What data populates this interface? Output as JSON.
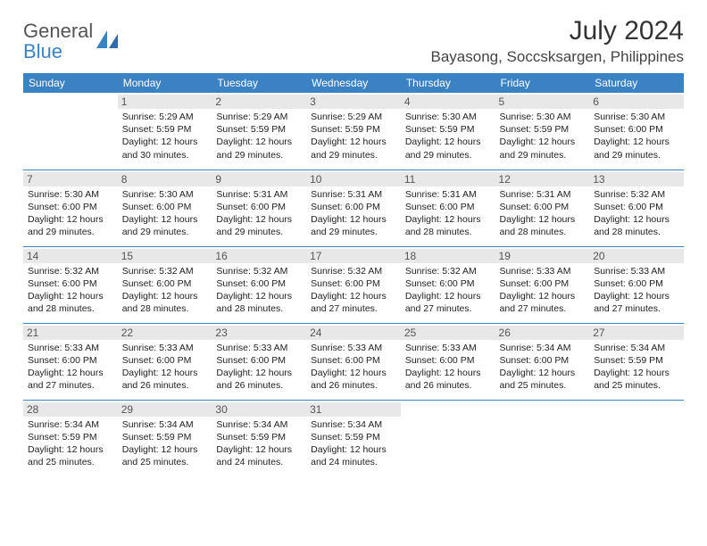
{
  "logo": {
    "word1": "General",
    "word2": "Blue"
  },
  "title": "July 2024",
  "location": "Bayasong, Soccsksargen, Philippines",
  "colors": {
    "header_bg": "#3b82c4",
    "header_text": "#ffffff",
    "body_text": "#222222",
    "daynum_bg": "#e8e8e8",
    "border": "#3b82c4",
    "logo_gray": "#555555",
    "logo_blue": "#3b82c4"
  },
  "day_headers": [
    "Sunday",
    "Monday",
    "Tuesday",
    "Wednesday",
    "Thursday",
    "Friday",
    "Saturday"
  ],
  "weeks": [
    [
      null,
      {
        "n": "1",
        "sr": "5:29 AM",
        "ss": "5:59 PM",
        "dl": "12 hours and 30 minutes."
      },
      {
        "n": "2",
        "sr": "5:29 AM",
        "ss": "5:59 PM",
        "dl": "12 hours and 29 minutes."
      },
      {
        "n": "3",
        "sr": "5:29 AM",
        "ss": "5:59 PM",
        "dl": "12 hours and 29 minutes."
      },
      {
        "n": "4",
        "sr": "5:30 AM",
        "ss": "5:59 PM",
        "dl": "12 hours and 29 minutes."
      },
      {
        "n": "5",
        "sr": "5:30 AM",
        "ss": "5:59 PM",
        "dl": "12 hours and 29 minutes."
      },
      {
        "n": "6",
        "sr": "5:30 AM",
        "ss": "6:00 PM",
        "dl": "12 hours and 29 minutes."
      }
    ],
    [
      {
        "n": "7",
        "sr": "5:30 AM",
        "ss": "6:00 PM",
        "dl": "12 hours and 29 minutes."
      },
      {
        "n": "8",
        "sr": "5:30 AM",
        "ss": "6:00 PM",
        "dl": "12 hours and 29 minutes."
      },
      {
        "n": "9",
        "sr": "5:31 AM",
        "ss": "6:00 PM",
        "dl": "12 hours and 29 minutes."
      },
      {
        "n": "10",
        "sr": "5:31 AM",
        "ss": "6:00 PM",
        "dl": "12 hours and 29 minutes."
      },
      {
        "n": "11",
        "sr": "5:31 AM",
        "ss": "6:00 PM",
        "dl": "12 hours and 28 minutes."
      },
      {
        "n": "12",
        "sr": "5:31 AM",
        "ss": "6:00 PM",
        "dl": "12 hours and 28 minutes."
      },
      {
        "n": "13",
        "sr": "5:32 AM",
        "ss": "6:00 PM",
        "dl": "12 hours and 28 minutes."
      }
    ],
    [
      {
        "n": "14",
        "sr": "5:32 AM",
        "ss": "6:00 PM",
        "dl": "12 hours and 28 minutes."
      },
      {
        "n": "15",
        "sr": "5:32 AM",
        "ss": "6:00 PM",
        "dl": "12 hours and 28 minutes."
      },
      {
        "n": "16",
        "sr": "5:32 AM",
        "ss": "6:00 PM",
        "dl": "12 hours and 28 minutes."
      },
      {
        "n": "17",
        "sr": "5:32 AM",
        "ss": "6:00 PM",
        "dl": "12 hours and 27 minutes."
      },
      {
        "n": "18",
        "sr": "5:32 AM",
        "ss": "6:00 PM",
        "dl": "12 hours and 27 minutes."
      },
      {
        "n": "19",
        "sr": "5:33 AM",
        "ss": "6:00 PM",
        "dl": "12 hours and 27 minutes."
      },
      {
        "n": "20",
        "sr": "5:33 AM",
        "ss": "6:00 PM",
        "dl": "12 hours and 27 minutes."
      }
    ],
    [
      {
        "n": "21",
        "sr": "5:33 AM",
        "ss": "6:00 PM",
        "dl": "12 hours and 27 minutes."
      },
      {
        "n": "22",
        "sr": "5:33 AM",
        "ss": "6:00 PM",
        "dl": "12 hours and 26 minutes."
      },
      {
        "n": "23",
        "sr": "5:33 AM",
        "ss": "6:00 PM",
        "dl": "12 hours and 26 minutes."
      },
      {
        "n": "24",
        "sr": "5:33 AM",
        "ss": "6:00 PM",
        "dl": "12 hours and 26 minutes."
      },
      {
        "n": "25",
        "sr": "5:33 AM",
        "ss": "6:00 PM",
        "dl": "12 hours and 26 minutes."
      },
      {
        "n": "26",
        "sr": "5:34 AM",
        "ss": "6:00 PM",
        "dl": "12 hours and 25 minutes."
      },
      {
        "n": "27",
        "sr": "5:34 AM",
        "ss": "5:59 PM",
        "dl": "12 hours and 25 minutes."
      }
    ],
    [
      {
        "n": "28",
        "sr": "5:34 AM",
        "ss": "5:59 PM",
        "dl": "12 hours and 25 minutes."
      },
      {
        "n": "29",
        "sr": "5:34 AM",
        "ss": "5:59 PM",
        "dl": "12 hours and 25 minutes."
      },
      {
        "n": "30",
        "sr": "5:34 AM",
        "ss": "5:59 PM",
        "dl": "12 hours and 24 minutes."
      },
      {
        "n": "31",
        "sr": "5:34 AM",
        "ss": "5:59 PM",
        "dl": "12 hours and 24 minutes."
      },
      null,
      null,
      null
    ]
  ],
  "labels": {
    "sunrise": "Sunrise:",
    "sunset": "Sunset:",
    "daylight": "Daylight:"
  }
}
